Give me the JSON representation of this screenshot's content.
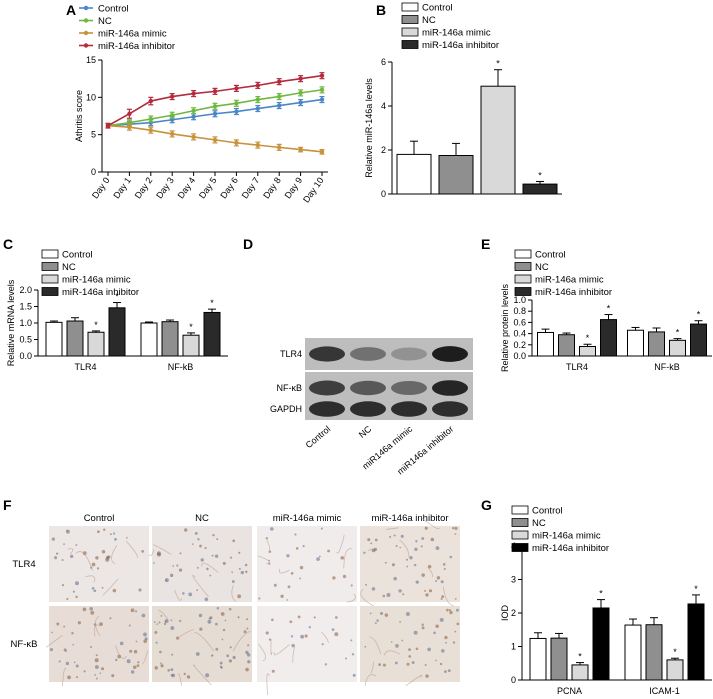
{
  "panels": {
    "A": {
      "letter": "A",
      "chart_data": {
        "type": "line",
        "ylabel": "Athritis score",
        "xlabel": "",
        "ylim": [
          0,
          15
        ],
        "yticks": [
          "0",
          "5",
          "10",
          "15"
        ],
        "categories": [
          "Day 0",
          "Day 1",
          "Day 2",
          "Day 3",
          "Day 4",
          "Day 5",
          "Day 6",
          "Day 7",
          "Day 8",
          "Day 9",
          "Day 10"
        ],
        "legend_position": "top-left",
        "series": [
          {
            "name": "Control",
            "color": "#4a86c8",
            "values": [
              6.2,
              6.4,
              6.6,
              7.0,
              7.4,
              7.8,
              8.1,
              8.5,
              8.9,
              9.3,
              9.7
            ],
            "errors": [
              0.3,
              0.4,
              0.4,
              0.4,
              0.4,
              0.4,
              0.4,
              0.4,
              0.4,
              0.4,
              0.4
            ]
          },
          {
            "name": "NC",
            "color": "#6fb83f",
            "values": [
              6.2,
              6.6,
              7.1,
              7.6,
              8.2,
              8.8,
              9.2,
              9.7,
              10.1,
              10.6,
              11.0
            ],
            "errors": [
              0.3,
              0.4,
              0.4,
              0.4,
              0.4,
              0.4,
              0.4,
              0.4,
              0.4,
              0.4,
              0.4
            ]
          },
          {
            "name": "miR-146a mimic",
            "color": "#c8913a",
            "values": [
              6.2,
              6.0,
              5.6,
              5.1,
              4.7,
              4.3,
              3.9,
              3.6,
              3.3,
              3.0,
              2.7
            ],
            "errors": [
              0.3,
              0.4,
              0.4,
              0.4,
              0.4,
              0.4,
              0.4,
              0.4,
              0.4,
              0.3,
              0.3
            ]
          },
          {
            "name": "miR-146a inhibitor",
            "color": "#b52a3c",
            "values": [
              6.2,
              7.8,
              9.5,
              10.1,
              10.5,
              10.8,
              11.2,
              11.6,
              12.1,
              12.5,
              12.9
            ],
            "errors": [
              0.3,
              0.6,
              0.5,
              0.4,
              0.4,
              0.4,
              0.4,
              0.4,
              0.4,
              0.4,
              0.4
            ]
          }
        ]
      }
    },
    "B": {
      "letter": "B",
      "chart_data": {
        "type": "bar",
        "ylabel": "Relative miR-146a levels",
        "ylim": [
          0,
          6
        ],
        "yticks": [
          "0",
          "2",
          "4",
          "6"
        ],
        "legend_position": "top-left",
        "categories": [
          ""
        ],
        "series": [
          {
            "name": "Control",
            "color": "#ffffff",
            "values": [
              1.8
            ],
            "errors": [
              0.6
            ],
            "sig": ""
          },
          {
            "name": "NC",
            "color": "#8f8f8f",
            "values": [
              1.75
            ],
            "errors": [
              0.55
            ],
            "sig": ""
          },
          {
            "name": "miR-146a mimic",
            "color": "#d9d9d9",
            "values": [
              4.9
            ],
            "errors": [
              0.75
            ],
            "sig": "*"
          },
          {
            "name": "miR-146a inhibitor",
            "color": "#2a2a2a",
            "values": [
              0.45
            ],
            "errors": [
              0.12
            ],
            "sig": "*"
          }
        ]
      }
    },
    "C": {
      "letter": "C",
      "chart_data": {
        "type": "bar",
        "ylabel": "Relative mRNA levels",
        "ylim": [
          0,
          2.0
        ],
        "yticks": [
          "0.0",
          "0.5",
          "1.0",
          "1.5",
          "2.0"
        ],
        "legend_position": "top-left",
        "categories": [
          "TLR4",
          "NF-kB"
        ],
        "series": [
          {
            "name": "Control",
            "color": "#ffffff",
            "values": [
              1.02,
              1.0
            ],
            "errors": [
              0.04,
              0.03
            ],
            "sig": [
              "",
              ""
            ]
          },
          {
            "name": "NC",
            "color": "#8f8f8f",
            "values": [
              1.06,
              1.04
            ],
            "errors": [
              0.1,
              0.05
            ],
            "sig": [
              "",
              ""
            ]
          },
          {
            "name": "miR-146a mimic",
            "color": "#d9d9d9",
            "values": [
              0.72,
              0.63
            ],
            "errors": [
              0.04,
              0.07
            ],
            "sig": [
              "*",
              "*"
            ]
          },
          {
            "name": "miR-146a inhibitor",
            "color": "#2a2a2a",
            "values": [
              1.46,
              1.32
            ],
            "errors": [
              0.16,
              0.1
            ],
            "sig": [
              "*",
              "*"
            ]
          }
        ]
      }
    },
    "D": {
      "letter": "D",
      "rows": [
        "TLR4",
        "NF-κB",
        "GAPDH"
      ],
      "lanes": [
        "Control",
        "NC",
        "miR146a mimic",
        "miR146a inhibitor"
      ]
    },
    "E": {
      "letter": "E",
      "chart_data": {
        "type": "bar",
        "ylabel": "Relative protein levels",
        "ylim": [
          0,
          1.0
        ],
        "yticks": [
          "0.0",
          "0.2",
          "0.4",
          "0.6",
          "0.8",
          "1.0"
        ],
        "legend_position": "top-left",
        "categories": [
          "TLR4",
          "NF-kB"
        ],
        "series": [
          {
            "name": "Control",
            "color": "#ffffff",
            "values": [
              0.42,
              0.46
            ],
            "errors": [
              0.06,
              0.05
            ],
            "sig": [
              "",
              ""
            ]
          },
          {
            "name": "NC",
            "color": "#8f8f8f",
            "values": [
              0.38,
              0.43
            ],
            "errors": [
              0.03,
              0.07
            ],
            "sig": [
              "",
              ""
            ]
          },
          {
            "name": "miR-146a mimic",
            "color": "#d9d9d9",
            "values": [
              0.17,
              0.28
            ],
            "errors": [
              0.04,
              0.03
            ],
            "sig": [
              "*",
              "*"
            ]
          },
          {
            "name": "miR-146a inhibitor",
            "color": "#2a2a2a",
            "values": [
              0.65,
              0.57
            ],
            "errors": [
              0.09,
              0.06
            ],
            "sig": [
              "*",
              "*"
            ]
          }
        ]
      }
    },
    "F": {
      "letter": "F",
      "columns": [
        "Control",
        "NC",
        "miR-146a mimic",
        "miR-146a inhibitor"
      ],
      "rows": [
        "TLR4",
        "NF-κB"
      ]
    },
    "G": {
      "letter": "G",
      "chart_data": {
        "type": "bar",
        "ylabel": "IOD",
        "ylim": [
          0,
          4
        ],
        "yticks": [
          "0",
          "1",
          "2",
          "3",
          "4"
        ],
        "legend_position": "top-left",
        "categories": [
          "PCNA",
          "ICAM-1"
        ],
        "series": [
          {
            "name": "Control",
            "color": "#ffffff",
            "values": [
              1.24,
              1.64
            ],
            "errors": [
              0.17,
              0.18
            ],
            "sig": [
              "",
              ""
            ]
          },
          {
            "name": "NC",
            "color": "#8f8f8f",
            "values": [
              1.25,
              1.65
            ],
            "errors": [
              0.14,
              0.21
            ],
            "sig": [
              "",
              ""
            ]
          },
          {
            "name": "miR-146a mimic",
            "color": "#d9d9d9",
            "values": [
              0.45,
              0.6
            ],
            "errors": [
              0.07,
              0.05
            ],
            "sig": [
              "*",
              "*"
            ]
          },
          {
            "name": "miR-146a inhibitor",
            "color": "#000000",
            "values": [
              2.15,
              2.27
            ],
            "errors": [
              0.25,
              0.27
            ],
            "sig": [
              "*",
              "*"
            ]
          }
        ]
      }
    }
  }
}
